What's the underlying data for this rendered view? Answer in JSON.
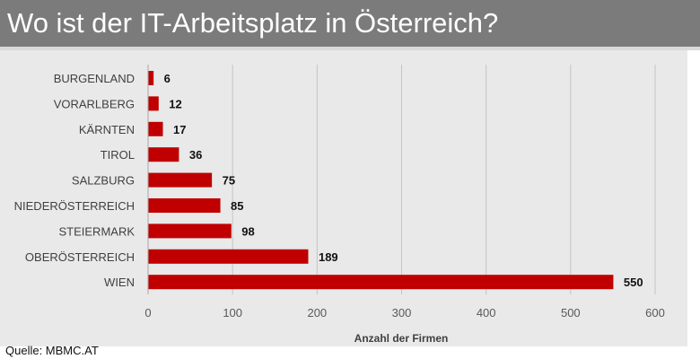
{
  "header": {
    "title": "Wo ist der IT-Arbeitsplatz in Österreich?"
  },
  "footer": {
    "source": "Quelle: MBMC.AT"
  },
  "colors": {
    "bar": "#c00000",
    "title_bg": "#7b7b7b",
    "chart_bg": "#e9e9e9"
  },
  "chart_data": {
    "type": "bar",
    "orientation": "horizontal",
    "title": "",
    "xlabel": "Anzahl der Firmen",
    "ylabel": "",
    "categories": [
      "BURGENLAND",
      "VORARLBERG",
      "KÄRNTEN",
      "TIROL",
      "SALZBURG",
      "NIEDERÖSTERREICH",
      "STEIERMARK",
      "OBERÖSTERREICH",
      "WIEN"
    ],
    "values": [
      6,
      12,
      17,
      36,
      75,
      85,
      98,
      189,
      550
    ],
    "xlim": [
      0,
      600
    ],
    "xticks": [
      0,
      100,
      200,
      300,
      400,
      500,
      600
    ],
    "grid": "vertical",
    "data_labels": true,
    "legend": "none"
  }
}
